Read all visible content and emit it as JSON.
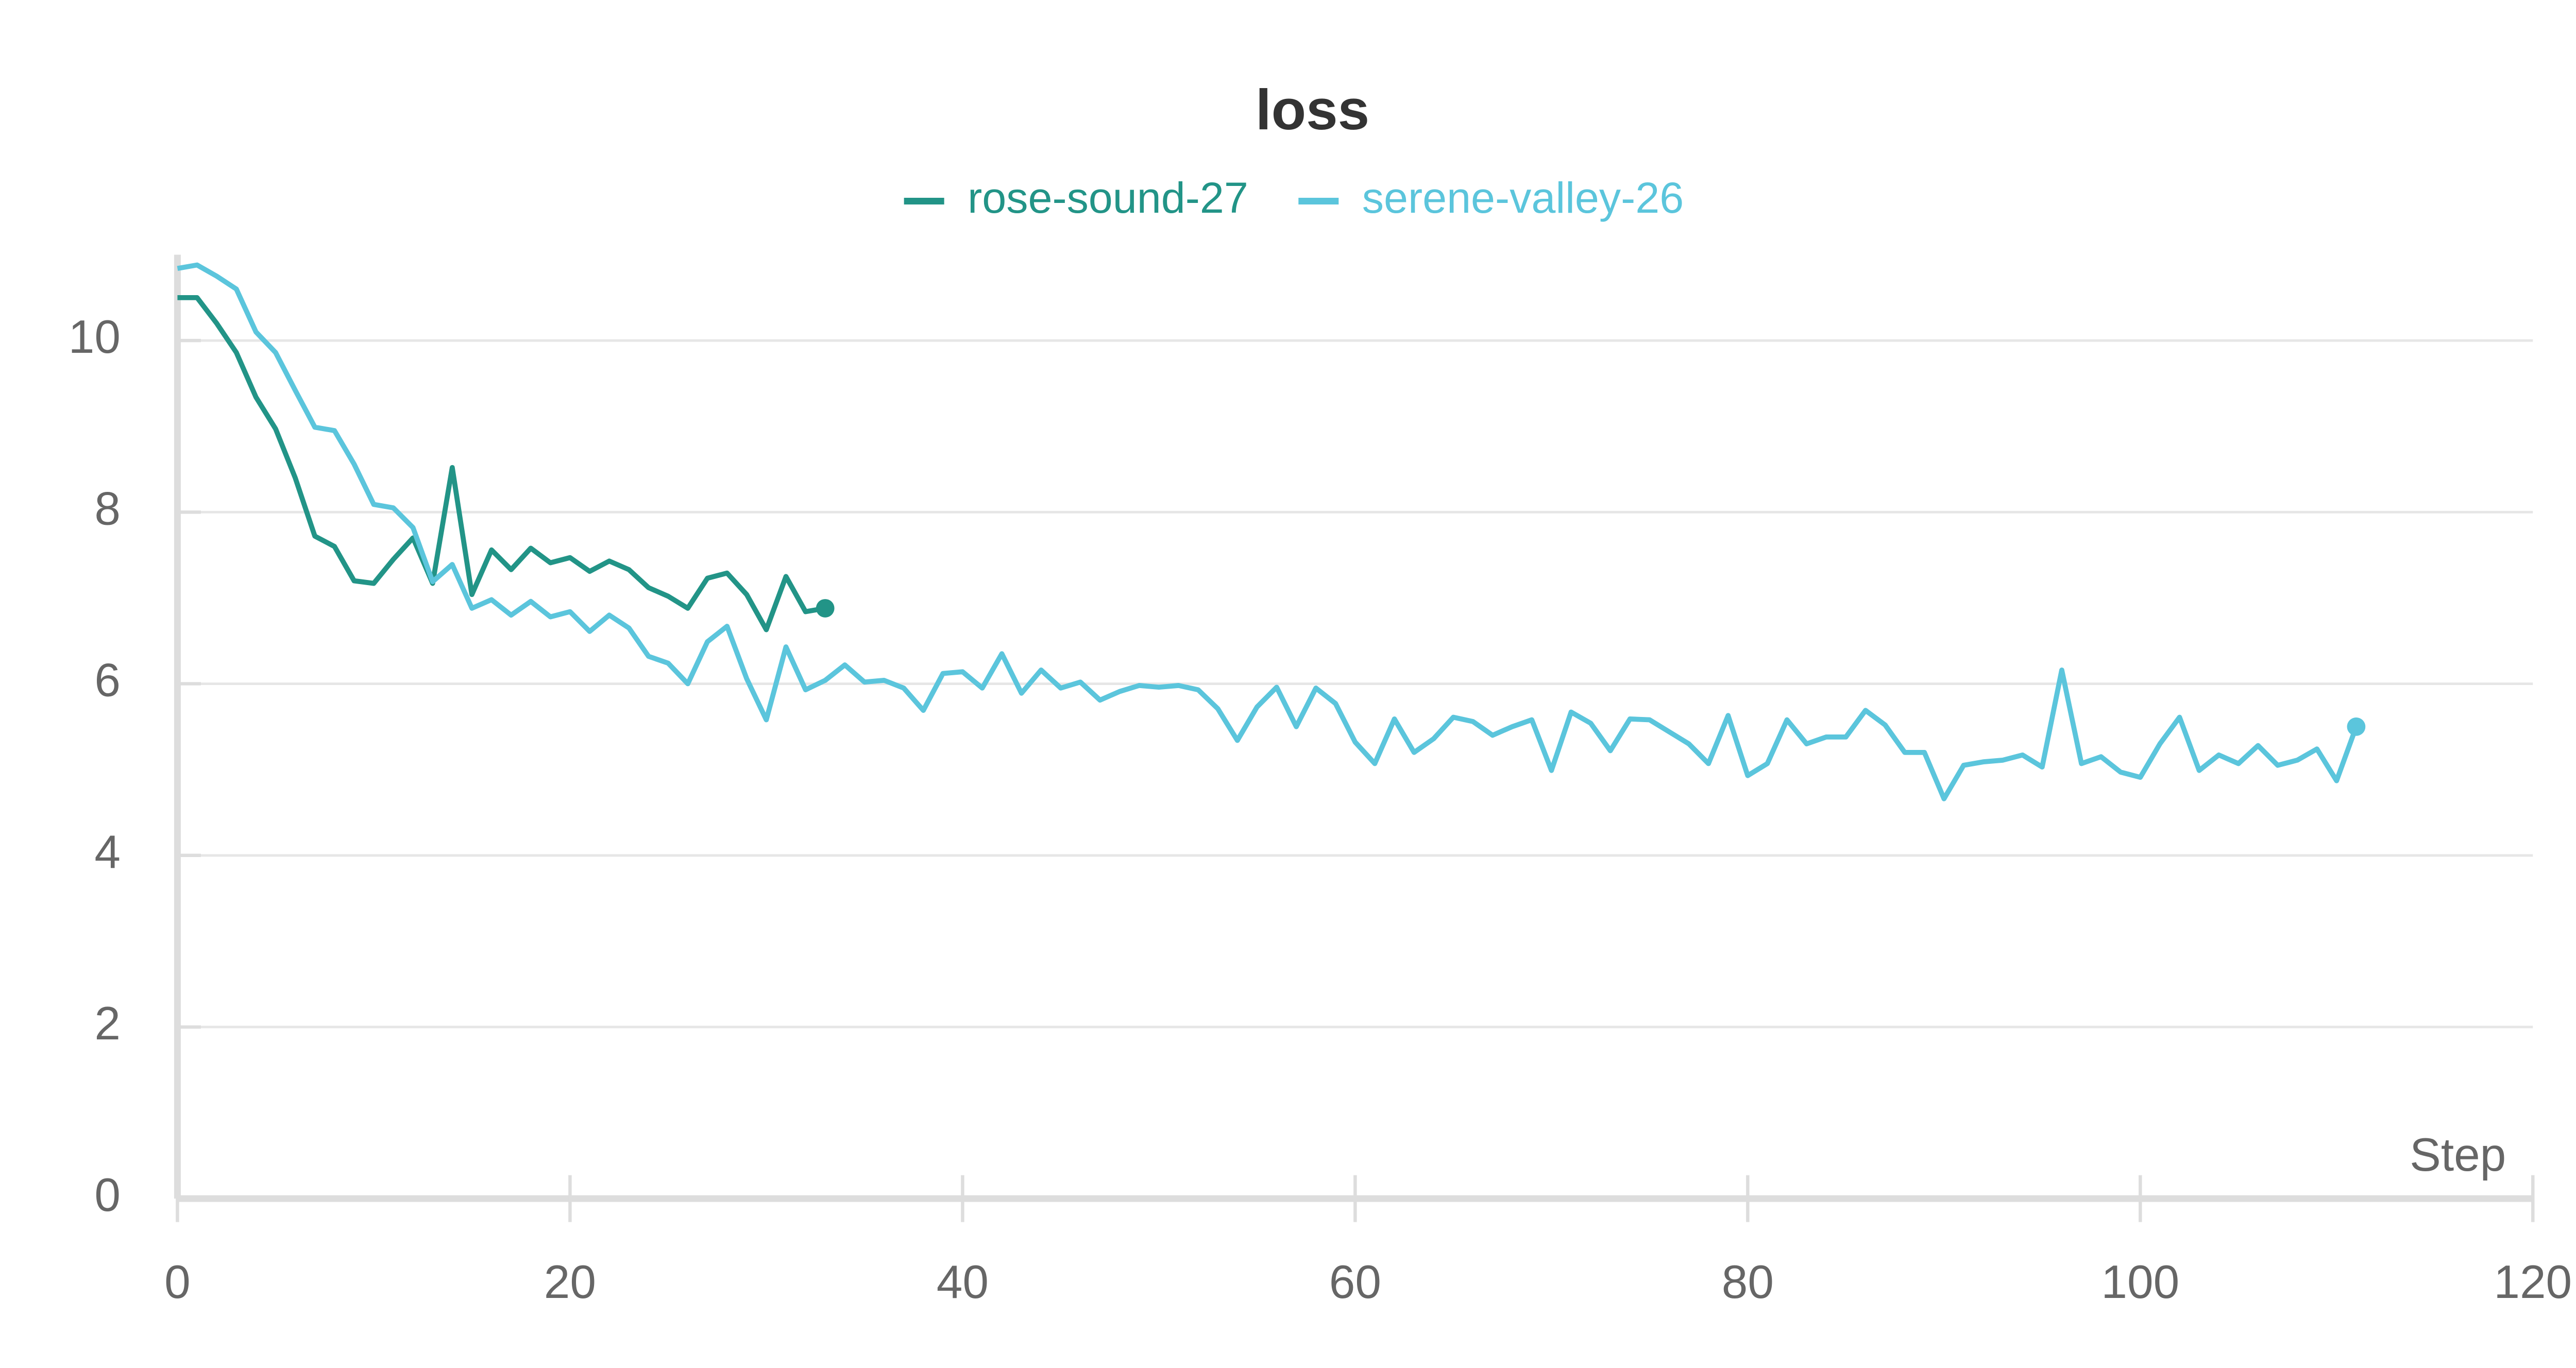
{
  "chart_data": {
    "type": "line",
    "title": "loss",
    "x_label": "Step",
    "x": [
      0,
      1,
      2,
      3,
      4,
      5,
      6,
      7,
      8,
      9,
      10,
      11,
      12,
      13,
      14,
      15,
      16,
      17,
      18,
      19,
      20,
      21,
      22,
      23,
      24,
      25,
      26,
      27,
      28,
      29,
      30,
      31,
      32,
      33,
      34,
      35,
      36,
      37,
      38,
      39,
      40,
      41,
      42,
      43,
      44,
      45,
      46,
      47,
      48,
      49,
      50,
      51,
      52,
      53,
      54,
      55,
      56,
      57,
      58,
      59,
      60,
      61,
      62,
      63,
      64,
      65,
      66,
      67,
      68,
      69,
      70,
      71,
      72,
      73,
      74,
      75,
      76,
      77,
      78,
      79,
      80,
      81,
      82,
      83,
      84,
      85,
      86,
      87,
      88,
      89,
      90,
      91,
      92,
      93,
      94,
      95,
      96,
      97,
      98,
      99,
      100,
      101,
      102,
      103,
      104,
      105,
      106,
      107,
      108,
      109,
      110,
      111
    ],
    "series": [
      {
        "name": "rose-sound-27",
        "color": "#229487",
        "values": [
          10.5,
          10.5,
          10.2,
          9.86,
          9.34,
          8.97,
          8.4,
          7.72,
          7.6,
          7.2,
          7.17,
          7.45,
          7.7,
          7.17,
          8.52,
          7.04,
          7.56,
          7.33,
          7.58,
          7.41,
          7.47,
          7.31,
          7.43,
          7.33,
          7.12,
          7.02,
          6.88,
          7.23,
          7.29,
          7.04,
          6.63,
          7.25,
          6.84,
          6.88,
          null,
          null,
          null,
          null,
          null,
          null,
          null,
          null,
          null,
          null,
          null,
          null,
          null,
          null,
          null,
          null,
          null,
          null,
          null,
          null,
          null,
          null,
          null,
          null,
          null,
          null,
          null,
          null,
          null,
          null,
          null,
          null,
          null,
          null,
          null,
          null,
          null,
          null,
          null,
          null,
          null,
          null,
          null,
          null,
          null,
          null,
          null,
          null,
          null,
          null,
          null,
          null,
          null,
          null,
          null,
          null,
          null,
          null,
          null,
          null,
          null,
          null,
          null,
          null,
          null,
          null,
          null,
          null,
          null,
          null,
          null,
          null,
          null,
          null,
          null,
          null,
          null,
          null
        ]
      },
      {
        "name": "serene-valley-26",
        "color": "#5bc5dc",
        "values": [
          10.84,
          10.88,
          10.75,
          10.6,
          10.1,
          9.86,
          9.42,
          8.99,
          8.95,
          8.56,
          8.09,
          8.05,
          7.82,
          7.19,
          7.39,
          6.88,
          6.98,
          6.8,
          6.96,
          6.78,
          6.84,
          6.61,
          6.8,
          6.65,
          6.32,
          6.24,
          6.0,
          6.49,
          6.67,
          6.06,
          5.58,
          6.43,
          5.93,
          6.04,
          6.22,
          6.02,
          6.04,
          5.95,
          5.69,
          6.12,
          6.14,
          5.95,
          6.35,
          5.89,
          6.16,
          5.95,
          6.02,
          5.81,
          5.91,
          5.98,
          5.96,
          5.98,
          5.93,
          5.71,
          5.34,
          5.73,
          5.96,
          5.5,
          5.95,
          5.77,
          5.32,
          5.07,
          5.59,
          5.2,
          5.36,
          5.61,
          5.56,
          5.4,
          5.5,
          5.58,
          4.99,
          5.67,
          5.54,
          5.22,
          5.59,
          5.58,
          5.44,
          5.3,
          5.07,
          5.63,
          4.93,
          5.07,
          5.58,
          5.3,
          5.38,
          5.38,
          5.69,
          5.52,
          5.2,
          5.2,
          4.66,
          5.05,
          5.09,
          5.11,
          5.17,
          5.03,
          6.16,
          5.07,
          5.15,
          4.97,
          4.91,
          5.3,
          5.61,
          4.99,
          5.17,
          5.07,
          5.28,
          5.05,
          5.11,
          5.24,
          4.87,
          5.5
        ]
      }
    ],
    "xlim": [
      0,
      120
    ],
    "xticks": [
      0,
      20,
      40,
      60,
      80,
      100,
      120
    ],
    "ylim": [
      0,
      11
    ],
    "yticks": [
      0,
      2,
      4,
      6,
      8,
      10
    ],
    "grid": true,
    "legend": "top"
  }
}
